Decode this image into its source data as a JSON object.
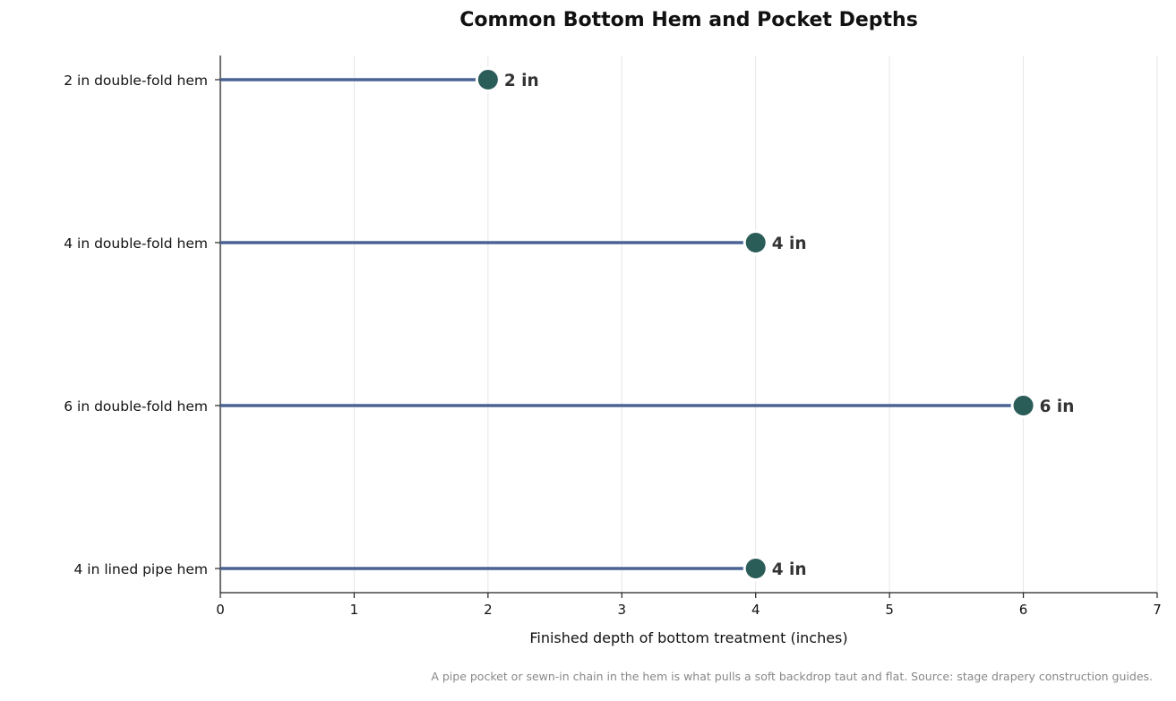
{
  "colors": {
    "stem": "#4a6394",
    "marker": "#2a5c58",
    "marker_edge": "#ffffff",
    "value_label": "#333333",
    "axis": "#222222",
    "grid": "#e6e6e6"
  },
  "caption": "A pipe pocket or sewn-in chain in the hem is what pulls a soft backdrop taut and flat. Source: stage drapery construction guides.",
  "chart_data": {
    "type": "lollipop",
    "orientation": "horizontal",
    "title": "Common Bottom Hem and Pocket Depths",
    "xlabel": "Finished depth of bottom treatment (inches)",
    "ylabel": "",
    "xlim": [
      0,
      7
    ],
    "xticks": [
      "0",
      "1",
      "2",
      "3",
      "4",
      "5",
      "6",
      "7"
    ],
    "grid": "vertical",
    "categories": [
      "2 in double-fold hem",
      "4 in double-fold hem",
      "6 in double-fold hem",
      "4 in lined pipe hem"
    ],
    "values": [
      2,
      4,
      6,
      4
    ],
    "value_labels": [
      "2 in",
      "4 in",
      "6 in",
      "4 in"
    ]
  }
}
